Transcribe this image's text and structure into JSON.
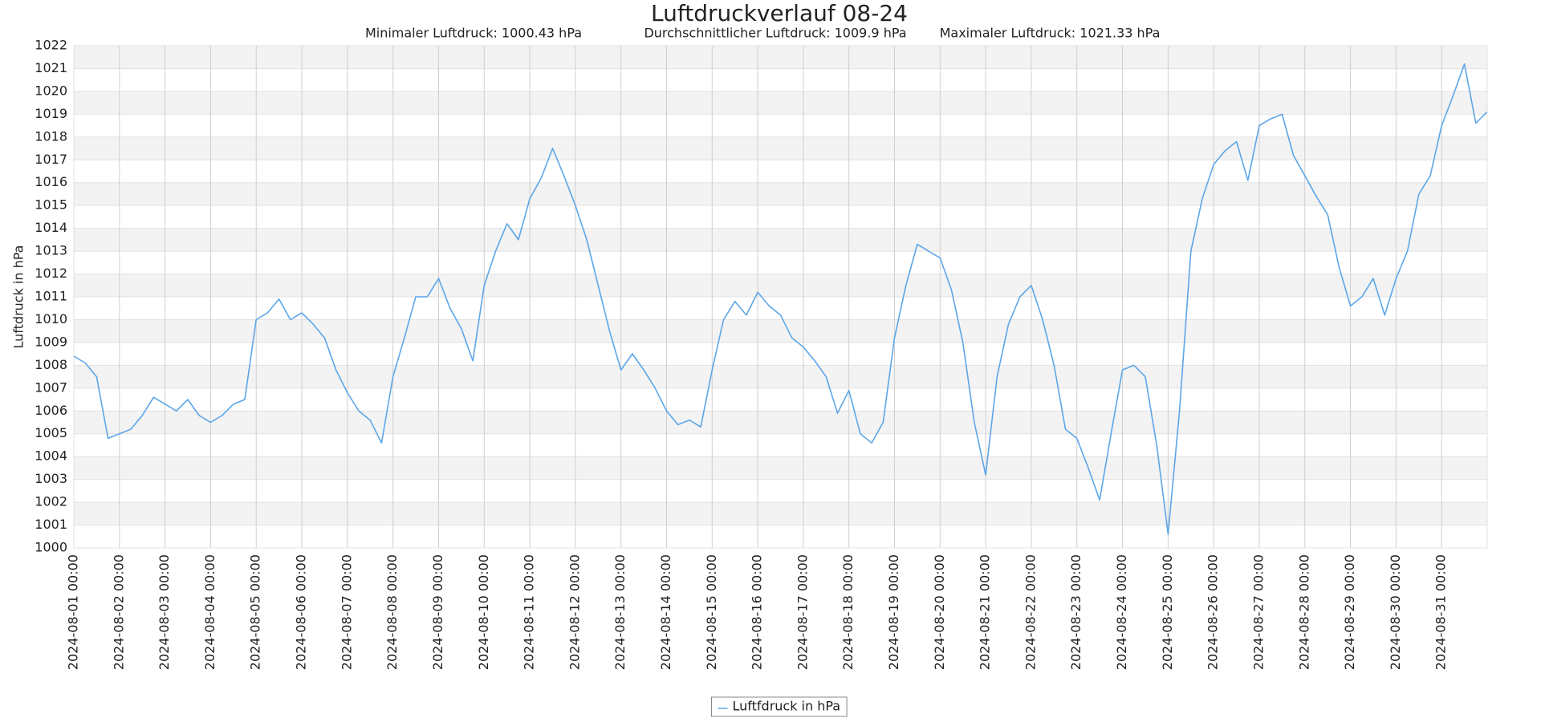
{
  "chart_data": {
    "type": "line",
    "title": "Luftdruckverlauf 08-24",
    "subtitles": [
      "Minimaler Luftdruck: 1000.43 hPa",
      "Durchschnittlicher Luftdruck: 1009.9 hPa",
      "Maximaler Luftdruck: 1021.33 hPa"
    ],
    "y_label": "Luftdruck in hPa",
    "ylim": [
      1000,
      1022
    ],
    "yticks": [
      1000,
      1001,
      1002,
      1003,
      1004,
      1005,
      1006,
      1007,
      1008,
      1009,
      1010,
      1011,
      1012,
      1013,
      1014,
      1015,
      1016,
      1017,
      1018,
      1019,
      1020,
      1021,
      1022
    ],
    "xlim": [
      "2024-08-01 00:00",
      "2024-09-01 00:00"
    ],
    "xticks": [
      "2024-08-01 00:00",
      "2024-08-02 00:00",
      "2024-08-03 00:00",
      "2024-08-04 00:00",
      "2024-08-05 00:00",
      "2024-08-06 00:00",
      "2024-08-07 00:00",
      "2024-08-08 00:00",
      "2024-08-09 00:00",
      "2024-08-10 00:00",
      "2024-08-11 00:00",
      "2024-08-12 00:00",
      "2024-08-13 00:00",
      "2024-08-14 00:00",
      "2024-08-15 00:00",
      "2024-08-16 00:00",
      "2024-08-17 00:00",
      "2024-08-18 00:00",
      "2024-08-19 00:00",
      "2024-08-20 00:00",
      "2024-08-21 00:00",
      "2024-08-22 00:00",
      "2024-08-23 00:00",
      "2024-08-24 00:00",
      "2024-08-25 00:00",
      "2024-08-26 00:00",
      "2024-08-27 00:00",
      "2024-08-28 00:00",
      "2024-08-29 00:00",
      "2024-08-30 00:00",
      "2024-08-31 00:00"
    ],
    "grid": true,
    "legend": "bottom",
    "x": [
      "2024-08-01 00:00",
      "2024-08-01 06:00",
      "2024-08-01 12:00",
      "2024-08-01 18:00",
      "2024-08-02 00:00",
      "2024-08-02 06:00",
      "2024-08-02 12:00",
      "2024-08-02 18:00",
      "2024-08-03 00:00",
      "2024-08-03 06:00",
      "2024-08-03 12:00",
      "2024-08-03 18:00",
      "2024-08-04 00:00",
      "2024-08-04 06:00",
      "2024-08-04 12:00",
      "2024-08-04 18:00",
      "2024-08-05 00:00",
      "2024-08-05 06:00",
      "2024-08-05 12:00",
      "2024-08-05 18:00",
      "2024-08-06 00:00",
      "2024-08-06 06:00",
      "2024-08-06 12:00",
      "2024-08-06 18:00",
      "2024-08-07 00:00",
      "2024-08-07 06:00",
      "2024-08-07 12:00",
      "2024-08-07 18:00",
      "2024-08-08 00:00",
      "2024-08-08 06:00",
      "2024-08-08 12:00",
      "2024-08-08 18:00",
      "2024-08-09 00:00",
      "2024-08-09 06:00",
      "2024-08-09 12:00",
      "2024-08-09 18:00",
      "2024-08-10 00:00",
      "2024-08-10 06:00",
      "2024-08-10 12:00",
      "2024-08-10 18:00",
      "2024-08-11 00:00",
      "2024-08-11 06:00",
      "2024-08-11 12:00",
      "2024-08-11 18:00",
      "2024-08-12 00:00",
      "2024-08-12 06:00",
      "2024-08-12 12:00",
      "2024-08-12 18:00",
      "2024-08-13 00:00",
      "2024-08-13 06:00",
      "2024-08-13 12:00",
      "2024-08-13 18:00",
      "2024-08-14 00:00",
      "2024-08-14 06:00",
      "2024-08-14 12:00",
      "2024-08-14 18:00",
      "2024-08-15 00:00",
      "2024-08-15 06:00",
      "2024-08-15 12:00",
      "2024-08-15 18:00",
      "2024-08-16 00:00",
      "2024-08-16 06:00",
      "2024-08-16 12:00",
      "2024-08-16 18:00",
      "2024-08-17 00:00",
      "2024-08-17 06:00",
      "2024-08-17 12:00",
      "2024-08-17 18:00",
      "2024-08-18 00:00",
      "2024-08-18 06:00",
      "2024-08-18 12:00",
      "2024-08-18 18:00",
      "2024-08-19 00:00",
      "2024-08-19 06:00",
      "2024-08-19 12:00",
      "2024-08-19 18:00",
      "2024-08-20 00:00",
      "2024-08-20 06:00",
      "2024-08-20 12:00",
      "2024-08-20 18:00",
      "2024-08-21 00:00",
      "2024-08-21 06:00",
      "2024-08-21 12:00",
      "2024-08-21 18:00",
      "2024-08-22 00:00",
      "2024-08-22 06:00",
      "2024-08-22 12:00",
      "2024-08-22 18:00",
      "2024-08-23 00:00",
      "2024-08-23 06:00",
      "2024-08-23 12:00",
      "2024-08-23 18:00",
      "2024-08-24 00:00",
      "2024-08-24 06:00",
      "2024-08-24 12:00",
      "2024-08-24 18:00",
      "2024-08-25 00:00",
      "2024-08-25 06:00",
      "2024-08-25 12:00",
      "2024-08-25 18:00",
      "2024-08-26 00:00",
      "2024-08-26 06:00",
      "2024-08-26 12:00",
      "2024-08-26 18:00",
      "2024-08-27 00:00",
      "2024-08-27 06:00",
      "2024-08-27 12:00",
      "2024-08-27 18:00",
      "2024-08-28 00:00",
      "2024-08-28 06:00",
      "2024-08-28 12:00",
      "2024-08-28 18:00",
      "2024-08-29 00:00",
      "2024-08-29 06:00",
      "2024-08-29 12:00",
      "2024-08-29 18:00",
      "2024-08-30 00:00",
      "2024-08-30 06:00",
      "2024-08-30 12:00",
      "2024-08-30 18:00",
      "2024-08-31 00:00",
      "2024-08-31 06:00",
      "2024-08-31 12:00",
      "2024-08-31 18:00",
      "2024-08-31 23:50"
    ],
    "series": [
      {
        "name": "Luftfdruck in hPa",
        "color": "#5ca6e8",
        "values": [
          1008.4,
          1008.1,
          1007.5,
          1004.8,
          1005.0,
          1005.2,
          1005.8,
          1006.6,
          1006.3,
          1006.0,
          1006.5,
          1005.8,
          1005.5,
          1005.8,
          1006.3,
          1006.5,
          1010.0,
          1010.3,
          1010.9,
          1010.0,
          1010.3,
          1009.8,
          1009.2,
          1007.8,
          1006.8,
          1006.0,
          1005.6,
          1004.6,
          1007.5,
          1009.2,
          1011.0,
          1011.0,
          1011.8,
          1010.5,
          1009.6,
          1008.2,
          1011.5,
          1013.0,
          1014.2,
          1013.5,
          1015.3,
          1016.2,
          1017.5,
          1016.3,
          1015.0,
          1013.5,
          1011.5,
          1009.5,
          1007.8,
          1008.5,
          1007.8,
          1007.0,
          1006.0,
          1005.4,
          1005.6,
          1005.3,
          1007.8,
          1010.0,
          1010.8,
          1010.2,
          1011.2,
          1010.6,
          1010.2,
          1009.2,
          1008.8,
          1008.2,
          1007.5,
          1005.9,
          1006.9,
          1005.0,
          1004.6,
          1005.5,
          1009.2,
          1011.5,
          1013.3,
          1013.0,
          1012.7,
          1011.3,
          1009.0,
          1005.5,
          1003.2,
          1007.5,
          1009.8,
          1011.0,
          1011.5,
          1010.0,
          1008.0,
          1005.2,
          1004.8,
          1003.5,
          1002.1,
          1005.0,
          1007.8,
          1008.0,
          1007.5,
          1004.5,
          1000.6,
          1006.0,
          1013.0,
          1015.3,
          1016.8,
          1017.4,
          1017.8,
          1016.1,
          1018.5,
          1018.8,
          1019.0,
          1017.2,
          1016.3,
          1015.4,
          1014.6,
          1012.3,
          1010.6,
          1011.0,
          1011.8,
          1010.2,
          1011.8,
          1013.0,
          1015.5,
          1016.3,
          1018.5,
          1019.8,
          1021.2,
          1018.6,
          1019.1
        ]
      }
    ]
  }
}
